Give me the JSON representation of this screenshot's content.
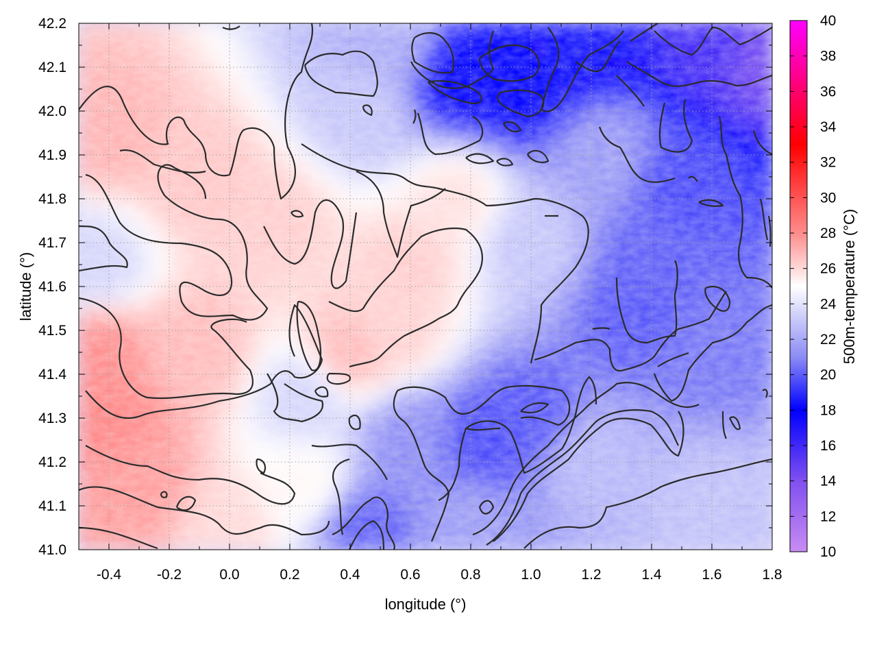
{
  "chart_data": {
    "type": "heatmap",
    "title": "",
    "xlabel": "longitude (°)",
    "ylabel": "latitude (°)",
    "colorbar_label": "500m-temperature (°C)",
    "xlim": [
      -0.5,
      1.8
    ],
    "ylim": [
      41.0,
      42.2
    ],
    "clim": [
      10,
      40
    ],
    "x_ticks": [
      -0.4,
      -0.2,
      0.0,
      0.2,
      0.4,
      0.6,
      0.8,
      1.0,
      1.2,
      1.4,
      1.6,
      1.8
    ],
    "x_tick_labels": [
      "-0.4",
      "-0.2",
      "0.0",
      "0.2",
      "0.4",
      "0.6",
      "0.8",
      "1.0",
      "1.2",
      "1.4",
      "1.6",
      "1.8"
    ],
    "y_ticks": [
      41.0,
      41.1,
      41.2,
      41.3,
      41.4,
      41.5,
      41.6,
      41.7,
      41.8,
      41.9,
      42.0,
      42.1,
      42.2
    ],
    "y_tick_labels": [
      "41.0",
      "41.1",
      "41.2",
      "41.3",
      "41.4",
      "41.5",
      "41.6",
      "41.7",
      "41.8",
      "41.9",
      "42.0",
      "42.1",
      "42.2"
    ],
    "colorbar_ticks": [
      10,
      12,
      14,
      16,
      18,
      20,
      22,
      24,
      26,
      28,
      30,
      32,
      34,
      36,
      38,
      40
    ],
    "colorbar_tick_labels": [
      "10",
      "12",
      "14",
      "16",
      "18",
      "20",
      "22",
      "24",
      "26",
      "28",
      "30",
      "32",
      "34",
      "36",
      "38",
      "40"
    ],
    "colormap": [
      {
        "value": 10,
        "color": "#c88cf2"
      },
      {
        "value": 14,
        "color": "#8050f0"
      },
      {
        "value": 18,
        "color": "#0000ff"
      },
      {
        "value": 21,
        "color": "#8c8cf5"
      },
      {
        "value": 25,
        "color": "#ffffff"
      },
      {
        "value": 28,
        "color": "#ff8c8c"
      },
      {
        "value": 33,
        "color": "#ff0000"
      },
      {
        "value": 40,
        "color": "#ff00ff"
      }
    ],
    "grid": true,
    "temperature_field": [
      {
        "lon": -0.4,
        "lat": 41.3,
        "temp": 28.2
      },
      {
        "lon": -0.45,
        "lat": 41.45,
        "temp": 28.0
      },
      {
        "lon": -0.3,
        "lat": 41.15,
        "temp": 27.6
      },
      {
        "lon": -0.1,
        "lat": 41.45,
        "temp": 26.8
      },
      {
        "lon": -0.4,
        "lat": 41.95,
        "temp": 27.0
      },
      {
        "lon": -0.1,
        "lat": 41.85,
        "temp": 26.5
      },
      {
        "lon": 0.15,
        "lat": 41.75,
        "temp": 26.3
      },
      {
        "lon": 0.4,
        "lat": 41.45,
        "temp": 26.8
      },
      {
        "lon": 0.6,
        "lat": 41.65,
        "temp": 26.3
      },
      {
        "lon": 0.75,
        "lat": 41.8,
        "temp": 25.8
      },
      {
        "lon": 0.55,
        "lat": 41.5,
        "temp": 26.2
      },
      {
        "lon": -0.45,
        "lat": 41.65,
        "temp": 23.5
      },
      {
        "lon": 0.0,
        "lat": 41.05,
        "temp": 26.0
      },
      {
        "lon": 0.45,
        "lat": 42.0,
        "temp": 23.0
      },
      {
        "lon": 0.55,
        "lat": 42.15,
        "temp": 22.0
      },
      {
        "lon": 0.75,
        "lat": 42.08,
        "temp": 17.8
      },
      {
        "lon": 0.95,
        "lat": 42.05,
        "temp": 18.0
      },
      {
        "lon": 1.15,
        "lat": 42.15,
        "temp": 17.5
      },
      {
        "lon": 1.6,
        "lat": 42.15,
        "temp": 16.0
      },
      {
        "lon": 1.75,
        "lat": 42.12,
        "temp": 14.5
      },
      {
        "lon": 1.5,
        "lat": 41.85,
        "temp": 19.5
      },
      {
        "lon": 1.35,
        "lat": 41.55,
        "temp": 19.8
      },
      {
        "lon": 1.6,
        "lat": 41.45,
        "temp": 20.5
      },
      {
        "lon": 1.4,
        "lat": 41.65,
        "temp": 20.0
      },
      {
        "lon": 1.2,
        "lat": 41.2,
        "temp": 22.5
      },
      {
        "lon": 1.6,
        "lat": 41.1,
        "temp": 22.8
      },
      {
        "lon": 0.85,
        "lat": 41.25,
        "temp": 19.5
      },
      {
        "lon": 1.0,
        "lat": 41.3,
        "temp": 19.8
      },
      {
        "lon": 0.6,
        "lat": 41.25,
        "temp": 21.0
      },
      {
        "lon": 0.45,
        "lat": 41.05,
        "temp": 20.0
      },
      {
        "lon": 0.8,
        "lat": 41.05,
        "temp": 21.5
      },
      {
        "lon": 1.0,
        "lat": 41.7,
        "temp": 23.0
      },
      {
        "lon": 1.25,
        "lat": 41.9,
        "temp": 21.5
      },
      {
        "lon": 0.25,
        "lat": 41.35,
        "temp": 23.5
      },
      {
        "lon": 0.25,
        "lat": 41.15,
        "temp": 25.2
      }
    ]
  }
}
